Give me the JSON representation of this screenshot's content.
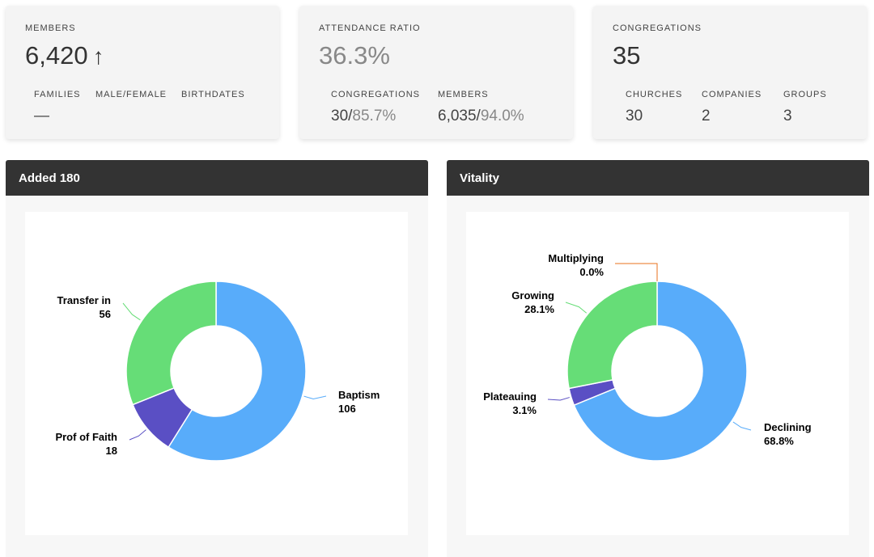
{
  "colors": {
    "blue": "#58acfa",
    "green": "#66dd77",
    "purple": "#5a4fc4",
    "orange": "#e8701e"
  },
  "cards": {
    "members": {
      "label": "MEMBERS",
      "value": "6,420",
      "trend_icon": "up-arrow-icon",
      "trend_glyph": "↑",
      "subs": [
        {
          "label": "FAMILIES",
          "value": "—"
        },
        {
          "label": "MALE/FEMALE",
          "value": ""
        },
        {
          "label": "BIRTHDATES",
          "value": ""
        }
      ]
    },
    "attendance": {
      "label": "ATTENDANCE RATIO",
      "value": "36.3%",
      "subs": [
        {
          "label": "CONGREGATIONS",
          "value": "30/",
          "pct": "85.7%"
        },
        {
          "label": "MEMBERS",
          "value": "6,035/",
          "pct": "94.0%"
        }
      ]
    },
    "congregations": {
      "label": "CONGREGATIONS",
      "value": "35",
      "subs": [
        {
          "label": "CHURCHES",
          "value": "30"
        },
        {
          "label": "COMPANIES",
          "value": "2"
        },
        {
          "label": "GROUPS",
          "value": "3"
        }
      ]
    }
  },
  "panels": {
    "added": {
      "title": "Added 180"
    },
    "vitality": {
      "title": "Vitality"
    }
  },
  "chart_data": [
    {
      "type": "pie",
      "title": "Added 180",
      "categories": [
        "Baptism",
        "Prof of Faith",
        "Transfer in"
      ],
      "values": [
        106,
        18,
        56
      ],
      "value_labels": [
        "106",
        "18",
        "56"
      ],
      "colors": [
        "#58acfa",
        "#5a4fc4",
        "#66dd77"
      ]
    },
    {
      "type": "pie",
      "title": "Vitality",
      "categories": [
        "Declining",
        "Plateauing",
        "Growing",
        "Multiplying"
      ],
      "values": [
        68.8,
        3.1,
        28.1,
        0.0
      ],
      "value_labels": [
        "68.8%",
        "3.1%",
        "28.1%",
        "0.0%"
      ],
      "colors": [
        "#58acfa",
        "#5a4fc4",
        "#66dd77",
        "#e8701e"
      ]
    }
  ]
}
